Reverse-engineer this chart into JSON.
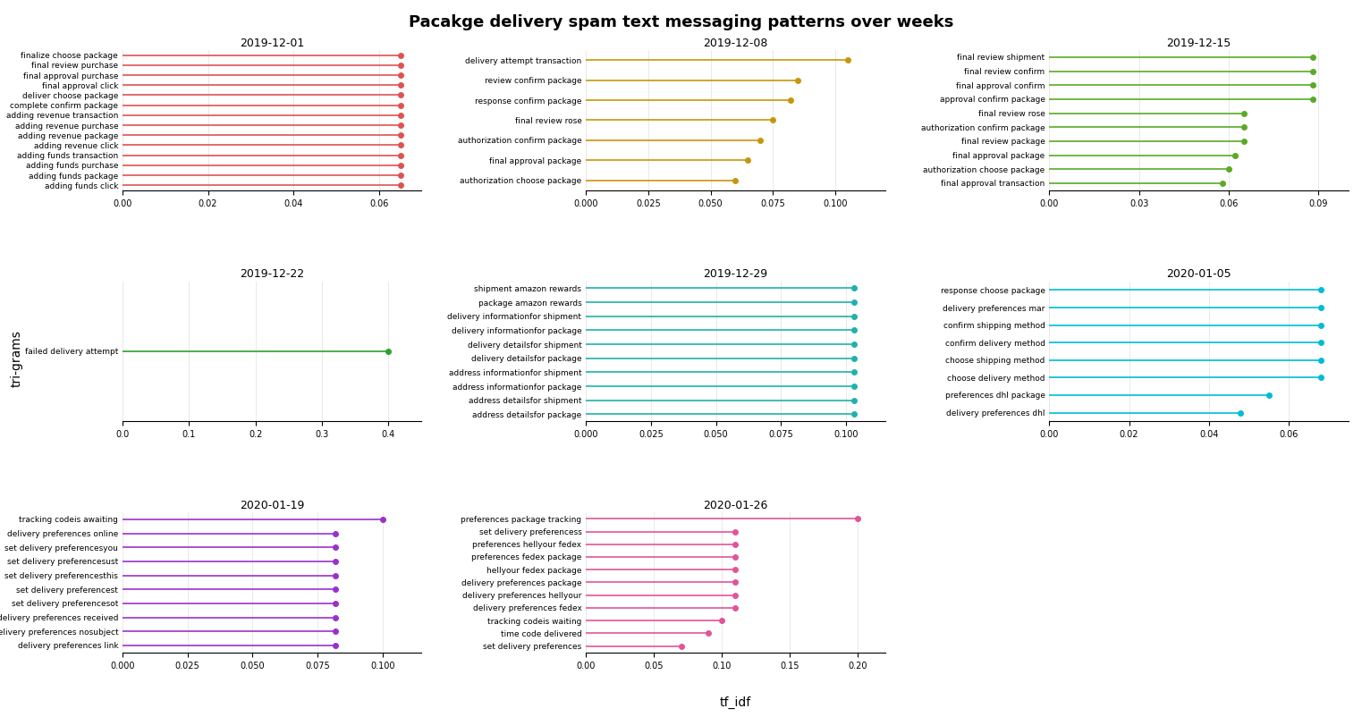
{
  "title": "Pacakge delivery spam text messaging patterns over weeks",
  "ylabel": "tri-grams",
  "xlabel": "tf_idf",
  "subplots": [
    {
      "title": "2019-12-01",
      "color": "#e05252",
      "xlim": [
        0,
        0.07
      ],
      "xticks": [
        0.0,
        0.02,
        0.04,
        0.06
      ],
      "xtick_labels": [
        "0.00",
        "0.02",
        "0.04",
        "0.06"
      ],
      "labels": [
        "finalize choose package",
        "final review purchase",
        "final approval purchase",
        "final approval click",
        "deliver choose package",
        "complete confirm package",
        "adding revenue transaction",
        "adding revenue purchase",
        "adding revenue package",
        "adding revenue click",
        "adding funds transaction",
        "adding funds purchase",
        "adding funds package",
        "adding funds click"
      ],
      "values": [
        0.065,
        0.065,
        0.065,
        0.065,
        0.065,
        0.065,
        0.065,
        0.065,
        0.065,
        0.065,
        0.065,
        0.065,
        0.065,
        0.065
      ]
    },
    {
      "title": "2019-12-08",
      "color": "#c8960c",
      "xlim": [
        0,
        0.12
      ],
      "xticks": [
        0.0,
        0.025,
        0.05,
        0.075,
        0.1
      ],
      "xtick_labels": [
        "0.000",
        "0.025",
        "0.050",
        "0.075",
        "0.100"
      ],
      "labels": [
        "delivery attempt transaction",
        "review confirm package",
        "response confirm package",
        "final review rose",
        "authorization confirm package",
        "final approval package",
        "authorization choose package"
      ],
      "values": [
        0.105,
        0.085,
        0.082,
        0.075,
        0.07,
        0.065,
        0.06
      ]
    },
    {
      "title": "2019-12-15",
      "color": "#5aaa25",
      "xlim": [
        0,
        0.1
      ],
      "xticks": [
        0.0,
        0.03,
        0.06,
        0.09
      ],
      "xtick_labels": [
        "0.00",
        "0.03",
        "0.06",
        "0.09"
      ],
      "labels": [
        "final review shipment",
        "final review confirm",
        "final approval confirm",
        "approval confirm package",
        "final review rose",
        "authorization confirm package",
        "final review package",
        "final approval package",
        "authorization choose package",
        "final approval transaction"
      ],
      "values": [
        0.088,
        0.088,
        0.088,
        0.088,
        0.065,
        0.065,
        0.065,
        0.062,
        0.06,
        0.058
      ]
    },
    {
      "title": "2019-12-22",
      "color": "#2ea02e",
      "xlim": [
        0,
        0.45
      ],
      "xticks": [
        0.0,
        0.1,
        0.2,
        0.3,
        0.4
      ],
      "xtick_labels": [
        "0.0",
        "0.1",
        "0.2",
        "0.3",
        "0.4"
      ],
      "labels": [
        "failed delivery attempt"
      ],
      "values": [
        0.4
      ]
    },
    {
      "title": "2019-12-29",
      "color": "#20b2aa",
      "xlim": [
        0,
        0.115
      ],
      "xticks": [
        0.0,
        0.025,
        0.05,
        0.075,
        0.1
      ],
      "xtick_labels": [
        "0.000",
        "0.025",
        "0.050",
        "0.075",
        "0.100"
      ],
      "labels": [
        "shipment amazon rewards",
        "package amazon rewards",
        "delivery informationfor shipment",
        "delivery informationfor package",
        "delivery detailsfor shipment",
        "delivery detailsfor package",
        "address informationfor shipment",
        "address informationfor package",
        "address detailsfor shipment",
        "address detailsfor package"
      ],
      "values": [
        0.103,
        0.103,
        0.103,
        0.103,
        0.103,
        0.103,
        0.103,
        0.103,
        0.103,
        0.103
      ]
    },
    {
      "title": "2020-01-05",
      "color": "#00bcd4",
      "xlim": [
        0,
        0.075
      ],
      "xticks": [
        0.0,
        0.02,
        0.04,
        0.06
      ],
      "xtick_labels": [
        "0.00",
        "0.02",
        "0.04",
        "0.06"
      ],
      "labels": [
        "response choose package",
        "delivery preferences mar",
        "confirm shipping method",
        "confirm delivery method",
        "choose shipping method",
        "choose delivery method",
        "preferences dhl package",
        "delivery preferences dhl"
      ],
      "values": [
        0.068,
        0.068,
        0.068,
        0.068,
        0.068,
        0.068,
        0.055,
        0.048
      ]
    },
    {
      "title": "2020-01-19",
      "color": "#9932cc",
      "xlim": [
        0,
        0.115
      ],
      "xticks": [
        0.0,
        0.025,
        0.05,
        0.075,
        0.1
      ],
      "xtick_labels": [
        "0.000",
        "0.025",
        "0.050",
        "0.075",
        "0.100"
      ],
      "labels": [
        "tracking codeis awaiting",
        "delivery preferences online",
        "set delivery preferencesyou",
        "set delivery preferencesust",
        "set delivery preferencesthis",
        "set delivery preferencest",
        "set delivery preferencesot",
        "delivery preferences received",
        "delivery preferences nosubject",
        "delivery preferences link"
      ],
      "values": [
        0.1,
        0.082,
        0.082,
        0.082,
        0.082,
        0.082,
        0.082,
        0.082,
        0.082,
        0.082
      ]
    },
    {
      "title": "2020-01-26",
      "color": "#e0559a",
      "xlim": [
        0,
        0.22
      ],
      "xticks": [
        0.0,
        0.05,
        0.1,
        0.15,
        0.2
      ],
      "xtick_labels": [
        "0.00",
        "0.05",
        "0.10",
        "0.15",
        "0.20"
      ],
      "labels": [
        "preferences package tracking",
        "set delivery preferencess",
        "preferences hellyour fedex",
        "preferences fedex package",
        "hellyour fedex package",
        "delivery preferences package",
        "delivery preferences hellyour",
        "delivery preferences fedex",
        "tracking codeis waiting",
        "time code delivered",
        "set delivery preferences"
      ],
      "values": [
        0.2,
        0.11,
        0.11,
        0.11,
        0.11,
        0.11,
        0.11,
        0.11,
        0.1,
        0.09,
        0.07
      ]
    }
  ]
}
